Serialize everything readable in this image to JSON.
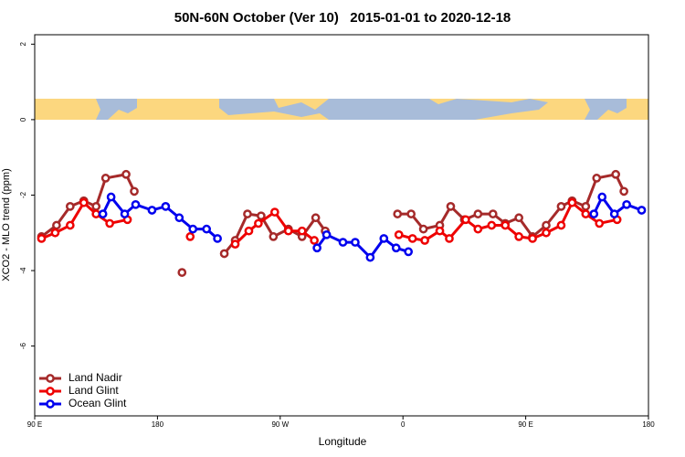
{
  "chart_data": {
    "type": "line",
    "title": "50N-60N October (Ver 10)   2015-01-01 to 2020-12-18",
    "xlabel": "Longitude",
    "ylabel": "XCO2 - MLO trend (ppm)",
    "xlim": [
      90,
      540
    ],
    "xticks": [
      {
        "value": 90,
        "label": "90 E"
      },
      {
        "value": 180,
        "label": "180"
      },
      {
        "value": 270,
        "label": "90 W"
      },
      {
        "value": 360,
        "label": "0"
      },
      {
        "value": 450,
        "label": "90 E"
      },
      {
        "value": 540,
        "label": "180"
      }
    ],
    "ylim": [
      -7.85,
      2.25
    ],
    "yticks": [
      -6,
      -4,
      -2,
      0,
      2
    ],
    "legend": "bottom-left",
    "series": [
      {
        "name": "Land Nadir",
        "color": "#a52a2a",
        "x": [
          95,
          106,
          116,
          126,
          135,
          142,
          157,
          163,
          null,
          198,
          null,
          229,
          237,
          246,
          256,
          265,
          276,
          286,
          296,
          303,
          null,
          356,
          366,
          375,
          387,
          395,
          405,
          415,
          426,
          435,
          445,
          455,
          465,
          476,
          484,
          494,
          502,
          516,
          522
        ],
        "values": [
          -3.1,
          -2.8,
          -2.3,
          -2.15,
          -2.3,
          -1.55,
          -1.45,
          -1.9,
          null,
          -4.05,
          null,
          -3.55,
          -3.2,
          -2.5,
          -2.55,
          -3.1,
          -2.9,
          -3.1,
          -2.6,
          -2.95,
          null,
          -2.5,
          -2.5,
          -2.9,
          -2.8,
          -2.3,
          -2.65,
          -2.5,
          -2.5,
          -2.75,
          -2.6,
          -3.1,
          -2.8,
          -2.3,
          -2.15,
          -2.3,
          -1.55,
          -1.45,
          -1.9
        ]
      },
      {
        "name": "Land Glint",
        "color": "#ee0000",
        "x": [
          95,
          105,
          116,
          126,
          135,
          145,
          158,
          null,
          204,
          null,
          237,
          247,
          254,
          266,
          276,
          286,
          295,
          null,
          357,
          367,
          376,
          387,
          394,
          406,
          415,
          425,
          435,
          445,
          455,
          465,
          476,
          484,
          494,
          504,
          517
        ],
        "values": [
          -3.15,
          -3.0,
          -2.8,
          -2.2,
          -2.5,
          -2.75,
          -2.65,
          null,
          -3.1,
          null,
          -3.3,
          -2.95,
          -2.75,
          -2.45,
          -2.95,
          -2.95,
          -3.2,
          null,
          -3.05,
          -3.15,
          -3.2,
          -2.95,
          -3.15,
          -2.65,
          -2.9,
          -2.8,
          -2.8,
          -3.1,
          -3.15,
          -3.0,
          -2.8,
          -2.2,
          -2.5,
          -2.75,
          -2.65
        ]
      },
      {
        "name": "Ocean Glint",
        "color": "#0000ee",
        "x": [
          140,
          146,
          156,
          164,
          176,
          186,
          196,
          206,
          216,
          224,
          null,
          297,
          304,
          316,
          325,
          336,
          346,
          355,
          364,
          null,
          500,
          506,
          515,
          524,
          535
        ],
        "values": [
          -2.5,
          -2.05,
          -2.5,
          -2.25,
          -2.4,
          -2.3,
          -2.6,
          -2.9,
          -2.9,
          -3.15,
          null,
          -3.4,
          -3.05,
          -3.25,
          -3.25,
          -3.65,
          -3.15,
          -3.4,
          -3.5,
          null,
          -2.5,
          -2.05,
          -2.5,
          -2.25,
          -2.4
        ]
      }
    ]
  }
}
